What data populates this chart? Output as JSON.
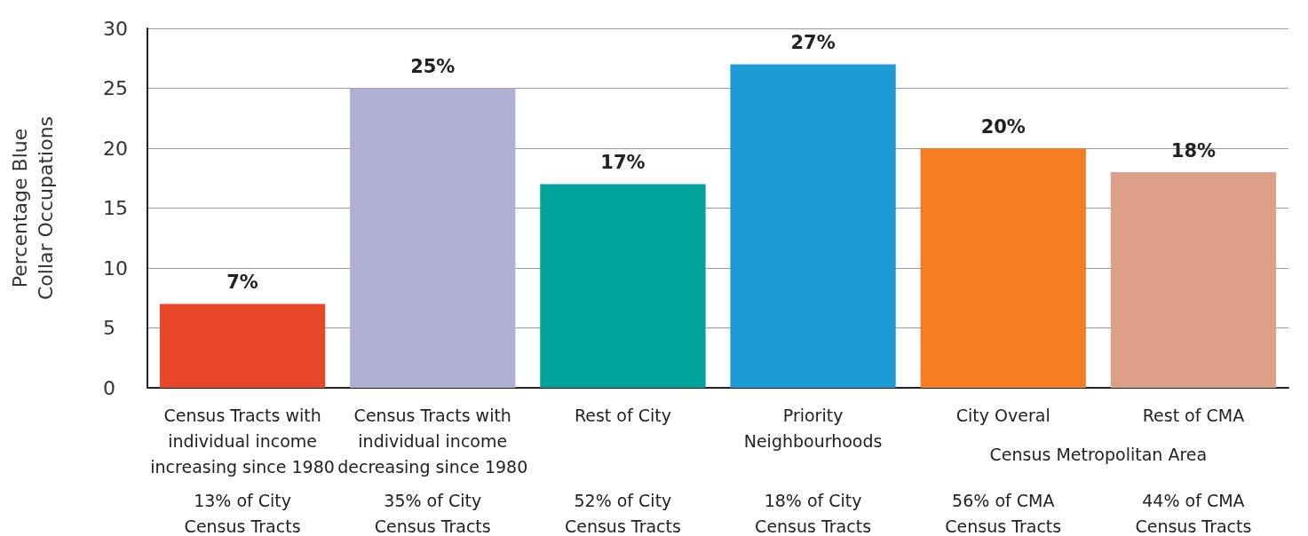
{
  "chart_data": {
    "type": "bar",
    "ylabel": "Percentage Blue\nCollar Occupations",
    "categories": [
      "Census Tracts with\nindividual income\nincreasing since 1980",
      "Census Tracts with\nindividual income\ndecreasing since 1980",
      "Rest of City",
      "Priority\nNeighbourhoods",
      "City Overal",
      "Rest of CMA"
    ],
    "values": [
      7,
      25,
      17,
      27,
      20,
      18
    ],
    "colors": [
      "#e8472a",
      "#b0b0d4",
      "#00a39a",
      "#1e9ad4",
      "#f47c22",
      "#dc9f88"
    ],
    "value_labels": [
      "7%",
      "25%",
      "17%",
      "27%",
      "20%",
      "18%"
    ],
    "ylim": [
      0,
      30
    ],
    "yticks": [
      0,
      5,
      10,
      15,
      20,
      25,
      30
    ],
    "grid": "y",
    "annotations": [
      "13% of City\nCensus Tracts",
      "35% of City\nCensus Tracts",
      "52% of City\nCensus Tracts",
      "18% of City\nCensus Tracts",
      "56% of CMA\nCensus Tracts",
      "44% of CMA\nCensus Tracts",
      "Census Metropolitan Area"
    ]
  }
}
